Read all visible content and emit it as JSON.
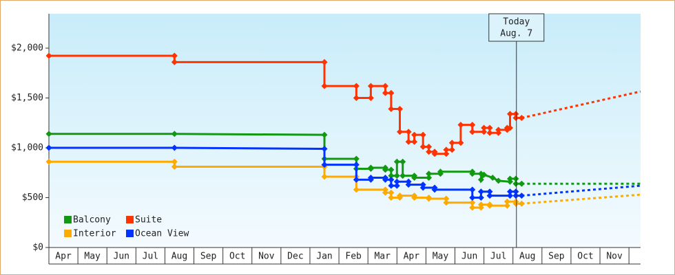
{
  "chart_data": {
    "type": "line",
    "xlim": [
      0,
      20.4
    ],
    "ylim": [
      0,
      2345
    ],
    "xticks": [
      {
        "value": 0.5,
        "label": "Apr"
      },
      {
        "value": 1.5,
        "label": "May"
      },
      {
        "value": 2.5,
        "label": "Jun"
      },
      {
        "value": 3.5,
        "label": "Jul"
      },
      {
        "value": 4.5,
        "label": "Aug"
      },
      {
        "value": 5.5,
        "label": "Sep"
      },
      {
        "value": 6.5,
        "label": "Oct"
      },
      {
        "value": 7.5,
        "label": "Nov"
      },
      {
        "value": 8.5,
        "label": "Dec"
      },
      {
        "value": 9.5,
        "label": "Jan"
      },
      {
        "value": 10.5,
        "label": "Feb"
      },
      {
        "value": 11.5,
        "label": "Mar"
      },
      {
        "value": 12.5,
        "label": "Apr"
      },
      {
        "value": 13.5,
        "label": "May"
      },
      {
        "value": 14.5,
        "label": "Jun"
      },
      {
        "value": 15.5,
        "label": "Jul"
      },
      {
        "value": 16.5,
        "label": "Aug"
      },
      {
        "value": 17.5,
        "label": "Sep"
      },
      {
        "value": 18.5,
        "label": "Oct"
      },
      {
        "value": 19.5,
        "label": "Nov"
      }
    ],
    "yticks": [
      {
        "value": 0,
        "label": "$0"
      },
      {
        "value": 500,
        "label": "$500"
      },
      {
        "value": 1000,
        "label": "$1,000"
      },
      {
        "value": 1500,
        "label": "$1,500"
      },
      {
        "value": 2000,
        "label": "$2,000"
      }
    ],
    "annotation": {
      "x": 16.12,
      "lines": [
        "Today",
        "Aug. 7"
      ]
    },
    "series": [
      {
        "name": "Balcony",
        "color": "#119911",
        "x": [
          0,
          4.33,
          9.5,
          9.5,
          10.6,
          10.6,
          11.1,
          11.1,
          11.6,
          11.6,
          11.8,
          11.8,
          12.0,
          12.0,
          12.2,
          12.2,
          12.6,
          12.6,
          13.1,
          13.1,
          13.5,
          13.5,
          14.6,
          14.6,
          14.9,
          14.9,
          15.0,
          15.3,
          15.5,
          15.9,
          15.9,
          16.1,
          16.1,
          16.3
        ],
        "values": [
          1140,
          1140,
          1130,
          890,
          890,
          790,
          790,
          800,
          800,
          780,
          780,
          720,
          720,
          860,
          860,
          720,
          720,
          700,
          700,
          740,
          740,
          760,
          760,
          740,
          740,
          680,
          730,
          700,
          670,
          660,
          690,
          690,
          640,
          640
        ],
        "projection": {
          "x": [
            16.3,
            20.4
          ],
          "values": [
            640,
            640
          ]
        }
      },
      {
        "name": "Suite",
        "color": "#ff3300",
        "x": [
          0,
          4.33,
          4.33,
          9.5,
          9.5,
          10.6,
          10.6,
          11.1,
          11.1,
          11.6,
          11.6,
          11.8,
          11.8,
          12.1,
          12.1,
          12.4,
          12.4,
          12.6,
          12.6,
          12.9,
          12.9,
          13.1,
          13.1,
          13.3,
          13.3,
          13.7,
          13.7,
          13.9,
          13.9,
          14.2,
          14.2,
          14.6,
          14.6,
          15.0,
          15.0,
          15.2,
          15.2,
          15.5,
          15.5,
          15.8,
          15.8,
          15.9,
          15.9,
          16.1,
          16.1,
          16.3
        ],
        "values": [
          1923,
          1923,
          1860,
          1860,
          1620,
          1620,
          1500,
          1500,
          1620,
          1620,
          1550,
          1550,
          1390,
          1390,
          1160,
          1160,
          1060,
          1060,
          1130,
          1130,
          1010,
          1010,
          960,
          960,
          940,
          940,
          980,
          980,
          1050,
          1050,
          1230,
          1230,
          1160,
          1160,
          1200,
          1200,
          1150,
          1150,
          1180,
          1180,
          1200,
          1200,
          1340,
          1340,
          1300,
          1300
        ],
        "projection": {
          "x": [
            16.3,
            20.4
          ],
          "values": [
            1300,
            1565
          ]
        }
      },
      {
        "name": "Interior",
        "color": "#ffaa00",
        "x": [
          0,
          4.33,
          4.33,
          9.5,
          9.5,
          10.6,
          10.6,
          11.6,
          11.6,
          11.8,
          11.8,
          12.1,
          12.1,
          12.6,
          12.6,
          13.1,
          13.1,
          13.7,
          13.7,
          14.6,
          14.6,
          14.9,
          14.9,
          15.2,
          15.2,
          15.8,
          15.8,
          16.1,
          16.1,
          16.3
        ],
        "values": [
          860,
          860,
          810,
          810,
          710,
          710,
          580,
          580,
          550,
          550,
          500,
          500,
          520,
          520,
          500,
          500,
          490,
          490,
          450,
          450,
          400,
          400,
          430,
          430,
          420,
          420,
          460,
          460,
          440,
          440
        ],
        "projection": {
          "x": [
            16.3,
            20.4
          ],
          "values": [
            440,
            530
          ]
        }
      },
      {
        "name": "Ocean View",
        "color": "#0033ff",
        "x": [
          0,
          4.33,
          9.5,
          9.5,
          10.6,
          10.6,
          11.1,
          11.1,
          11.6,
          11.6,
          11.8,
          11.8,
          12.0,
          12.0,
          12.4,
          12.4,
          12.9,
          12.9,
          13.3,
          13.3,
          14.6,
          14.6,
          14.9,
          14.9,
          15.2,
          15.2,
          15.9,
          15.9,
          16.1,
          16.1,
          16.3
        ],
        "values": [
          1000,
          1000,
          990,
          830,
          830,
          680,
          680,
          700,
          700,
          680,
          680,
          620,
          620,
          660,
          660,
          630,
          630,
          600,
          600,
          580,
          580,
          500,
          500,
          560,
          560,
          520,
          520,
          560,
          560,
          520,
          520
        ],
        "projection": {
          "x": [
            16.3,
            20.4
          ],
          "values": [
            520,
            620
          ]
        }
      }
    ]
  }
}
